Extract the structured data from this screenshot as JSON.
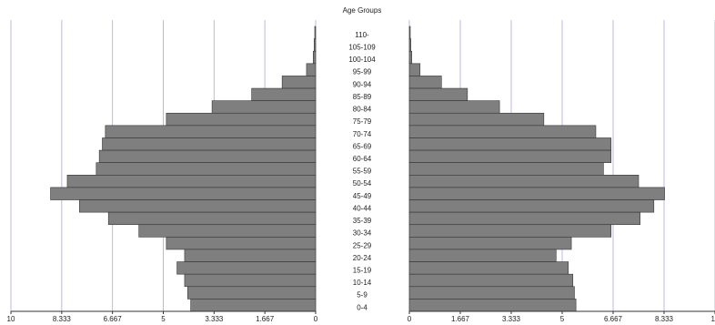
{
  "chart_data": {
    "type": "pyramid",
    "title": "Age Groups",
    "categories": [
      "110-",
      "105-109",
      "100-104",
      "95-99",
      "90-94",
      "85-89",
      "80-84",
      "75-79",
      "70-74",
      "65-69",
      "60-64",
      "55-59",
      "50-54",
      "45-49",
      "40-44",
      "35-39",
      "30-34",
      "25-29",
      "20-24",
      "15-19",
      "10-14",
      "5-9",
      "0-4"
    ],
    "series": [
      {
        "color": "#7f7f7f",
        "values": [
          0.03,
          0.05,
          0.08,
          0.3,
          1.1,
          2.1,
          3.4,
          4.9,
          6.9,
          7.0,
          7.1,
          7.2,
          8.15,
          8.7,
          7.75,
          6.8,
          5.8,
          4.9,
          4.3,
          4.55,
          4.3,
          4.2,
          4.1
        ]
      },
      {
        "color": "#7f7f7f",
        "values": [
          0.03,
          0.05,
          0.08,
          0.35,
          1.05,
          1.9,
          2.95,
          4.4,
          6.1,
          6.6,
          6.6,
          6.35,
          7.5,
          8.35,
          8.0,
          7.55,
          6.6,
          5.3,
          4.8,
          5.2,
          5.35,
          5.4,
          5.45
        ]
      }
    ],
    "xlim": [
      0,
      10
    ],
    "xticks": [
      0,
      1.667,
      3.333,
      5,
      6.667,
      8.333,
      10
    ],
    "grid": true
  }
}
